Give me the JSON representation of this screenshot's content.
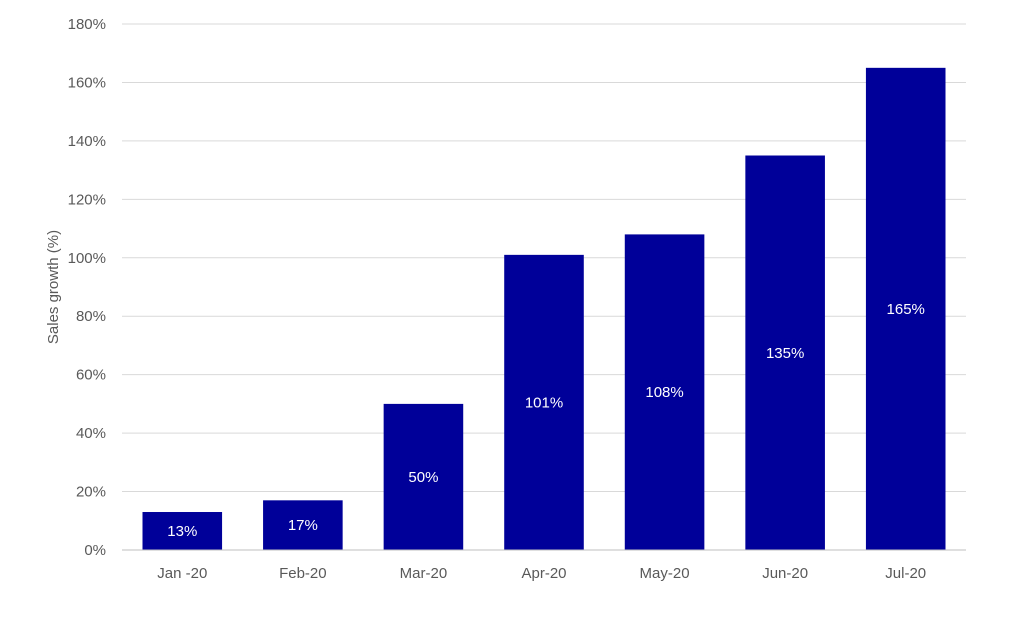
{
  "chart_data": {
    "type": "bar",
    "categories": [
      "Jan -20",
      "Feb-20",
      "Mar-20",
      "Apr-20",
      "May-20",
      "Jun-20",
      "Jul-20"
    ],
    "values": [
      13,
      17,
      50,
      101,
      108,
      135,
      165
    ],
    "data_labels": [
      "13%",
      "17%",
      "50%",
      "101%",
      "108%",
      "135%",
      "165%"
    ],
    "title": "",
    "xlabel": "",
    "ylabel": "Sales growth (%)",
    "ylim": [
      0,
      180
    ],
    "yticks": [
      0,
      20,
      40,
      60,
      80,
      100,
      120,
      140,
      160,
      180
    ],
    "ytick_labels": [
      "0%",
      "20%",
      "40%",
      "60%",
      "80%",
      "100%",
      "120%",
      "140%",
      "160%",
      "180%"
    ],
    "grid": true,
    "legend": "none",
    "colors": {
      "bar": "#000099",
      "grid": "#d9d9d9",
      "text": "#595959",
      "label": "#ffffff"
    }
  }
}
